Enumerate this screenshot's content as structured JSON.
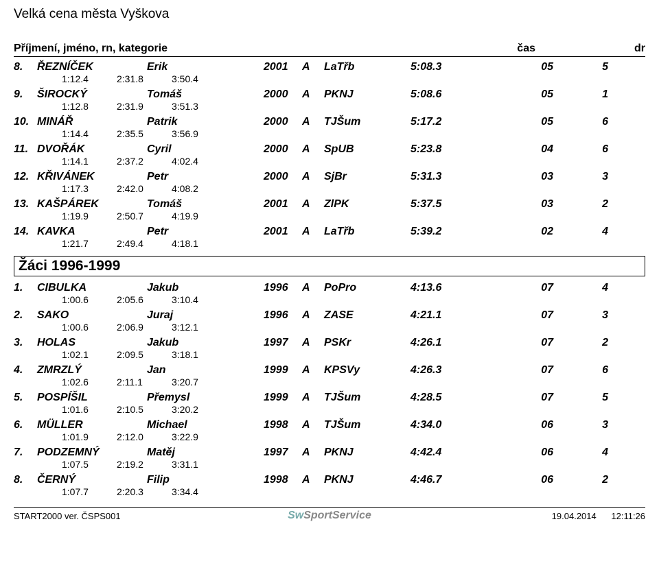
{
  "event_title": "Velká cena města Vyškova",
  "header": {
    "name": "Příjmení, jméno, rn, kategorie",
    "time": "čas",
    "dr": "dr"
  },
  "group1": {
    "rows": [
      {
        "rank": "8.",
        "surname": "ŘEZNÍČEK",
        "firstname": "Erik",
        "year": "2001",
        "cat": "A",
        "club": "LaTřb",
        "time": "5:08.3",
        "pts": "05",
        "dr": "5",
        "splits": [
          "1:12.4",
          "2:31.8",
          "3:50.4"
        ]
      },
      {
        "rank": "9.",
        "surname": "ŠIROCKÝ",
        "firstname": "Tomáš",
        "year": "2000",
        "cat": "A",
        "club": "PKNJ",
        "time": "5:08.6",
        "pts": "05",
        "dr": "1",
        "splits": [
          "1:12.8",
          "2:31.9",
          "3:51.3"
        ]
      },
      {
        "rank": "10.",
        "surname": "MINÁŘ",
        "firstname": "Patrik",
        "year": "2000",
        "cat": "A",
        "club": "TJŠum",
        "time": "5:17.2",
        "pts": "05",
        "dr": "6",
        "splits": [
          "1:14.4",
          "2:35.5",
          "3:56.9"
        ]
      },
      {
        "rank": "11.",
        "surname": "DVOŘÁK",
        "firstname": "Cyril",
        "year": "2000",
        "cat": "A",
        "club": "SpUB",
        "time": "5:23.8",
        "pts": "04",
        "dr": "6",
        "splits": [
          "1:14.1",
          "2:37.2",
          "4:02.4"
        ]
      },
      {
        "rank": "12.",
        "surname": "KŘIVÁNEK",
        "firstname": "Petr",
        "year": "2000",
        "cat": "A",
        "club": "SjBr",
        "time": "5:31.3",
        "pts": "03",
        "dr": "3",
        "splits": [
          "1:17.3",
          "2:42.0",
          "4:08.2"
        ]
      },
      {
        "rank": "13.",
        "surname": "KAŠPÁREK",
        "firstname": "Tomáš",
        "year": "2001",
        "cat": "A",
        "club": "ZlPK",
        "time": "5:37.5",
        "pts": "03",
        "dr": "2",
        "splits": [
          "1:19.9",
          "2:50.7",
          "4:19.9"
        ]
      },
      {
        "rank": "14.",
        "surname": "KAVKA",
        "firstname": "Petr",
        "year": "2001",
        "cat": "A",
        "club": "LaTřb",
        "time": "5:39.2",
        "pts": "02",
        "dr": "4",
        "splits": [
          "1:21.7",
          "2:49.4",
          "4:18.1"
        ]
      }
    ]
  },
  "section2_title": "Žáci 1996-1999",
  "group2": {
    "rows": [
      {
        "rank": "1.",
        "surname": "CIBULKA",
        "firstname": "Jakub",
        "year": "1996",
        "cat": "A",
        "club": "PoPro",
        "time": "4:13.6",
        "pts": "07",
        "dr": "4",
        "splits": [
          "1:00.6",
          "2:05.6",
          "3:10.4"
        ]
      },
      {
        "rank": "2.",
        "surname": "SAKO",
        "firstname": "Juraj",
        "year": "1996",
        "cat": "A",
        "club": "ZASE",
        "time": "4:21.1",
        "pts": "07",
        "dr": "3",
        "splits": [
          "1:00.6",
          "2:06.9",
          "3:12.1"
        ]
      },
      {
        "rank": "3.",
        "surname": "HOLAS",
        "firstname": "Jakub",
        "year": "1997",
        "cat": "A",
        "club": "PSKr",
        "time": "4:26.1",
        "pts": "07",
        "dr": "2",
        "splits": [
          "1:02.1",
          "2:09.5",
          "3:18.1"
        ]
      },
      {
        "rank": "4.",
        "surname": "ZMRZLÝ",
        "firstname": "Jan",
        "year": "1999",
        "cat": "A",
        "club": "KPSVy",
        "time": "4:26.3",
        "pts": "07",
        "dr": "6",
        "splits": [
          "1:02.6",
          "2:11.1",
          "3:20.7"
        ]
      },
      {
        "rank": "5.",
        "surname": "POSPÍŠIL",
        "firstname": "Přemysl",
        "year": "1999",
        "cat": "A",
        "club": "TJŠum",
        "time": "4:28.5",
        "pts": "07",
        "dr": "5",
        "splits": [
          "1:01.6",
          "2:10.5",
          "3:20.2"
        ]
      },
      {
        "rank": "6.",
        "surname": "MÜLLER",
        "firstname": "Michael",
        "year": "1998",
        "cat": "A",
        "club": "TJŠum",
        "time": "4:34.0",
        "pts": "06",
        "dr": "3",
        "splits": [
          "1:01.9",
          "2:12.0",
          "3:22.9"
        ]
      },
      {
        "rank": "7.",
        "surname": "PODZEMNÝ",
        "firstname": "Matěj",
        "year": "1997",
        "cat": "A",
        "club": "PKNJ",
        "time": "4:42.4",
        "pts": "06",
        "dr": "4",
        "splits": [
          "1:07.5",
          "2:19.2",
          "3:31.1"
        ]
      },
      {
        "rank": "8.",
        "surname": "ČERNÝ",
        "firstname": "Filip",
        "year": "1998",
        "cat": "A",
        "club": "PKNJ",
        "time": "4:46.7",
        "pts": "06",
        "dr": "2",
        "splits": [
          "1:07.7",
          "2:20.3",
          "3:34.4"
        ]
      }
    ]
  },
  "footer": {
    "left": "START2000 ver. ČSPS001",
    "logo_sw": "Sw",
    "logo_rest": "SportService",
    "date": "19.04.2014",
    "time": "12:11:26"
  }
}
